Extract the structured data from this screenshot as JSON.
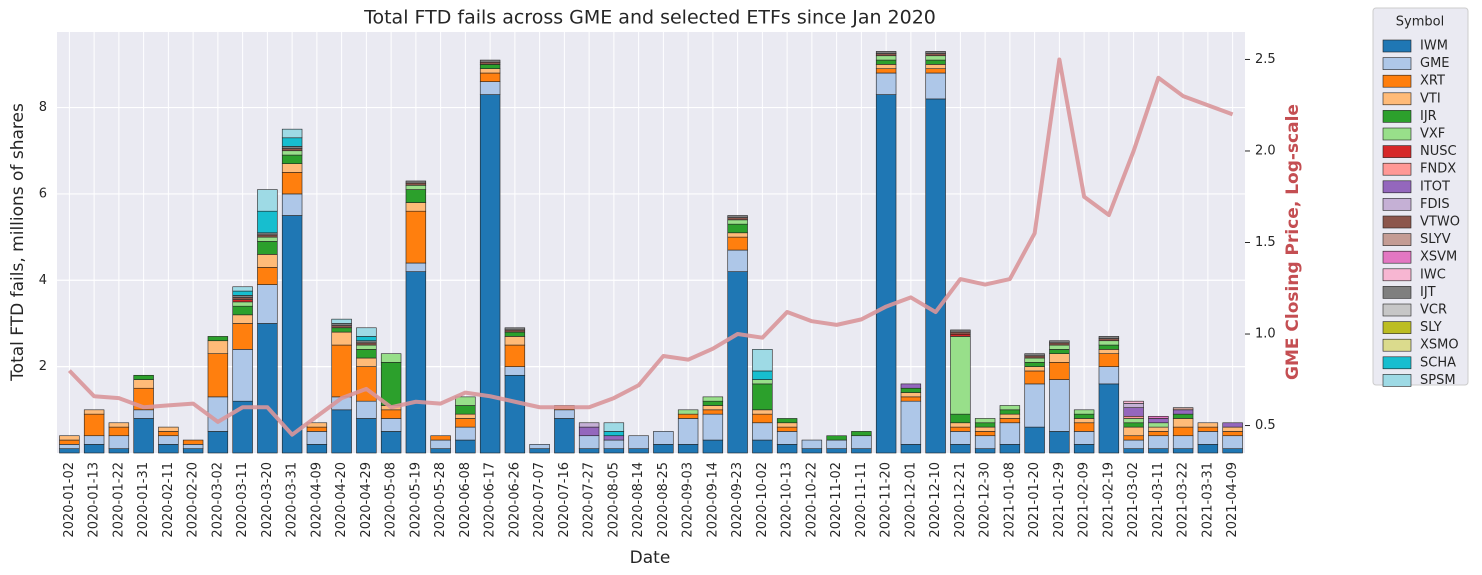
{
  "chart_data": {
    "type": "bar",
    "stacked": true,
    "title": "Total FTD fails across GME and selected ETFs since Jan 2020",
    "xlabel": "Date",
    "ylabel": "Total FTD fails, millions of shares",
    "y2label": "GME Closing Price, Log-scale",
    "legend_title": "Symbol",
    "legend": "outside-right",
    "grid": true,
    "ylim": [
      0,
      9.75
    ],
    "yticks": [
      2,
      4,
      6,
      8
    ],
    "y2lim": [
      0.35,
      2.65
    ],
    "y2ticks": [
      0.5,
      {
        "value": 1,
        "label": "1.0"
      },
      1.5,
      {
        "value": 2,
        "label": "2.0"
      },
      2.5
    ],
    "categories": [
      "2020-01-02",
      "2020-01-13",
      "2020-01-22",
      "2020-01-31",
      "2020-02-11",
      "2020-02-20",
      "2020-03-02",
      "2020-03-11",
      "2020-03-20",
      "2020-03-31",
      "2020-04-09",
      "2020-04-20",
      "2020-04-29",
      "2020-05-08",
      "2020-05-19",
      "2020-05-28",
      "2020-06-08",
      "2020-06-17",
      "2020-06-26",
      "2020-07-07",
      "2020-07-16",
      "2020-07-27",
      "2020-08-05",
      "2020-08-14",
      "2020-08-25",
      "2020-09-03",
      "2020-09-14",
      "2020-09-23",
      "2020-10-02",
      "2020-10-13",
      "2020-10-22",
      "2020-11-02",
      "2020-11-11",
      "2020-11-20",
      "2020-12-01",
      "2020-12-10",
      "2020-12-21",
      "2020-12-30",
      "2021-01-08",
      "2021-01-20",
      "2021-01-29",
      "2021-02-09",
      "2021-02-19",
      "2021-03-02",
      "2021-03-11",
      "2021-03-22",
      "2021-03-31",
      "2021-04-09"
    ],
    "series": [
      {
        "name": "IWM",
        "color": "#1f77b4",
        "values": [
          0.1,
          0.2,
          0.1,
          0.8,
          0.2,
          0.1,
          0.5,
          1.2,
          3.0,
          5.5,
          0.2,
          1.0,
          0.8,
          0.5,
          4.2,
          0.1,
          0.3,
          8.3,
          1.8,
          0.1,
          0.8,
          0.1,
          0.1,
          0.1,
          0.2,
          0.2,
          0.3,
          4.2,
          0.3,
          0.2,
          0.1,
          0.1,
          0.1,
          8.3,
          0.2,
          8.2,
          0.2,
          0.1,
          0.2,
          0.6,
          0.5,
          0.2,
          1.6,
          0.1,
          0.1,
          0.1,
          0.2,
          0.1
        ]
      },
      {
        "name": "GME",
        "color": "#aec7e8",
        "values": [
          0.1,
          0.2,
          0.3,
          0.2,
          0.2,
          0.1,
          0.8,
          1.2,
          0.9,
          0.5,
          0.3,
          0.3,
          0.4,
          0.3,
          0.2,
          0.2,
          0.3,
          0.3,
          0.2,
          0.1,
          0.2,
          0.3,
          0.2,
          0.3,
          0.3,
          0.6,
          0.6,
          0.5,
          0.4,
          0.3,
          0.2,
          0.2,
          0.3,
          0.5,
          1.0,
          0.6,
          0.3,
          0.3,
          0.5,
          1.0,
          1.2,
          0.3,
          0.4,
          0.2,
          0.3,
          0.3,
          0.3,
          0.3
        ]
      },
      {
        "name": "XRT",
        "color": "#ff7f0e",
        "values": [
          0.1,
          0.5,
          0.2,
          0.5,
          0.1,
          0.1,
          1.0,
          0.6,
          0.4,
          0.5,
          0.1,
          1.2,
          0.8,
          0.2,
          1.2,
          0.1,
          0.2,
          0.2,
          0.5,
          0,
          0.1,
          0,
          0,
          0,
          0,
          0.1,
          0.1,
          0.3,
          0.2,
          0.1,
          0,
          0,
          0,
          0.1,
          0.1,
          0.1,
          0.1,
          0.1,
          0.1,
          0.3,
          0.4,
          0.2,
          0.3,
          0.1,
          0.1,
          0.2,
          0.1,
          0.1
        ]
      },
      {
        "name": "VTI",
        "color": "#ffbb78",
        "values": [
          0.1,
          0.1,
          0.1,
          0.2,
          0.1,
          0,
          0.3,
          0.2,
          0.3,
          0.2,
          0.1,
          0.3,
          0.2,
          0.1,
          0.2,
          0,
          0.1,
          0.1,
          0.2,
          0,
          0,
          0,
          0,
          0,
          0,
          0,
          0.1,
          0.1,
          0.1,
          0.1,
          0,
          0,
          0,
          0.1,
          0.1,
          0.1,
          0.1,
          0.1,
          0.1,
          0.1,
          0.2,
          0.1,
          0.1,
          0.2,
          0.1,
          0.2,
          0.1,
          0.1
        ]
      },
      {
        "name": "IJR",
        "color": "#2ca02c",
        "values": [
          0,
          0,
          0,
          0.1,
          0,
          0,
          0.1,
          0.2,
          0.3,
          0.2,
          0,
          0.1,
          0.2,
          1.0,
          0.3,
          0,
          0.2,
          0.1,
          0.1,
          0,
          0,
          0,
          0,
          0,
          0,
          0,
          0.1,
          0.2,
          0.6,
          0.1,
          0,
          0.1,
          0.1,
          0.1,
          0.1,
          0.1,
          0.2,
          0.1,
          0.1,
          0.1,
          0.1,
          0.1,
          0.1,
          0.1,
          0,
          0.1,
          0,
          0
        ]
      },
      {
        "name": "VXF",
        "color": "#98df8a",
        "values": [
          0,
          0,
          0,
          0,
          0,
          0,
          0,
          0.1,
          0.1,
          0.1,
          0,
          0,
          0.1,
          0.2,
          0.1,
          0,
          0.2,
          0,
          0,
          0,
          0,
          0,
          0,
          0,
          0,
          0.1,
          0.1,
          0.1,
          0.1,
          0,
          0,
          0,
          0,
          0.1,
          0,
          0.1,
          1.8,
          0.1,
          0.1,
          0.1,
          0.1,
          0.1,
          0.1,
          0.1,
          0.1,
          0,
          0,
          0
        ]
      },
      {
        "name": "NUSC",
        "color": "#d62728",
        "values": [
          0,
          0,
          0,
          0,
          0,
          0,
          0,
          0.05,
          0,
          0,
          0,
          0,
          0,
          0,
          0,
          0,
          0,
          0,
          0,
          0,
          0,
          0,
          0,
          0,
          0,
          0,
          0,
          0,
          0,
          0,
          0,
          0,
          0,
          0,
          0,
          0,
          0.05,
          0,
          0,
          0,
          0,
          0,
          0,
          0,
          0,
          0,
          0,
          0
        ]
      },
      {
        "name": "FNDX",
        "color": "#ff9896",
        "values": [
          0,
          0,
          0,
          0,
          0,
          0,
          0,
          0,
          0,
          0,
          0,
          0,
          0,
          0,
          0,
          0,
          0,
          0,
          0,
          0,
          0,
          0,
          0,
          0,
          0,
          0,
          0,
          0,
          0,
          0,
          0,
          0,
          0,
          0,
          0,
          0,
          0,
          0,
          0,
          0,
          0,
          0,
          0,
          0.05,
          0,
          0,
          0,
          0
        ]
      },
      {
        "name": "ITOT",
        "color": "#9467bd",
        "values": [
          0,
          0,
          0,
          0,
          0,
          0,
          0,
          0,
          0,
          0,
          0,
          0,
          0,
          0,
          0,
          0,
          0,
          0,
          0,
          0,
          0,
          0.2,
          0.1,
          0,
          0,
          0,
          0,
          0,
          0,
          0,
          0,
          0,
          0,
          0,
          0.1,
          0,
          0,
          0,
          0,
          0,
          0,
          0,
          0,
          0.2,
          0.1,
          0.1,
          0,
          0.1
        ]
      },
      {
        "name": "FDIS",
        "color": "#c5b0d5",
        "values": [
          0,
          0,
          0,
          0,
          0,
          0,
          0,
          0,
          0,
          0,
          0,
          0,
          0,
          0,
          0,
          0,
          0,
          0,
          0,
          0,
          0,
          0.1,
          0,
          0,
          0,
          0,
          0,
          0,
          0,
          0,
          0,
          0,
          0,
          0,
          0,
          0,
          0,
          0,
          0,
          0,
          0,
          0,
          0,
          0.1,
          0,
          0,
          0,
          0
        ]
      },
      {
        "name": "VTWO",
        "color": "#8c564b",
        "values": [
          0,
          0,
          0,
          0,
          0,
          0,
          0,
          0.05,
          0.05,
          0.05,
          0,
          0.05,
          0.05,
          0,
          0.05,
          0,
          0,
          0.05,
          0.05,
          0,
          0,
          0,
          0,
          0,
          0,
          0,
          0,
          0.05,
          0,
          0,
          0,
          0,
          0,
          0.05,
          0,
          0.05,
          0.05,
          0,
          0,
          0.05,
          0.05,
          0,
          0.05,
          0,
          0,
          0,
          0,
          0
        ]
      },
      {
        "name": "SLYV",
        "color": "#c49c94",
        "values": [
          0,
          0,
          0,
          0,
          0,
          0,
          0,
          0,
          0,
          0,
          0,
          0,
          0,
          0,
          0,
          0,
          0,
          0,
          0,
          0,
          0,
          0,
          0,
          0,
          0,
          0,
          0,
          0,
          0,
          0,
          0,
          0,
          0,
          0,
          0,
          0,
          0,
          0,
          0,
          0,
          0,
          0,
          0,
          0,
          0,
          0.05,
          0,
          0
        ]
      },
      {
        "name": "XSVM",
        "color": "#e377c2",
        "values": [
          0,
          0,
          0,
          0,
          0,
          0,
          0,
          0,
          0,
          0,
          0,
          0,
          0,
          0,
          0,
          0,
          0,
          0,
          0,
          0,
          0,
          0,
          0,
          0,
          0,
          0,
          0,
          0,
          0,
          0,
          0,
          0,
          0,
          0,
          0,
          0,
          0,
          0,
          0,
          0,
          0,
          0,
          0,
          0,
          0.05,
          0,
          0,
          0
        ]
      },
      {
        "name": "IWC",
        "color": "#f7b6d2",
        "values": [
          0,
          0,
          0,
          0,
          0,
          0,
          0,
          0,
          0,
          0,
          0,
          0,
          0,
          0,
          0,
          0,
          0,
          0,
          0,
          0,
          0,
          0,
          0,
          0,
          0,
          0,
          0,
          0,
          0,
          0,
          0,
          0,
          0,
          0,
          0,
          0,
          0,
          0,
          0,
          0,
          0,
          0,
          0,
          0.05,
          0,
          0,
          0,
          0
        ]
      },
      {
        "name": "IJT",
        "color": "#7f7f7f",
        "values": [
          0,
          0,
          0,
          0,
          0,
          0,
          0,
          0.05,
          0.05,
          0.05,
          0,
          0.05,
          0.05,
          0,
          0.05,
          0,
          0,
          0.05,
          0.05,
          0,
          0,
          0,
          0,
          0,
          0,
          0,
          0,
          0.05,
          0,
          0,
          0,
          0,
          0,
          0.05,
          0,
          0.05,
          0.05,
          0,
          0,
          0.05,
          0.05,
          0,
          0.05,
          0,
          0,
          0,
          0,
          0
        ]
      },
      {
        "name": "VCR",
        "color": "#c7c7c7",
        "values": [
          0,
          0,
          0,
          0,
          0,
          0,
          0,
          0,
          0,
          0,
          0,
          0,
          0,
          0,
          0,
          0,
          0,
          0,
          0,
          0,
          0,
          0,
          0,
          0,
          0,
          0,
          0,
          0,
          0,
          0,
          0,
          0,
          0,
          0,
          0,
          0,
          0,
          0,
          0,
          0,
          0,
          0,
          0,
          0,
          0,
          0,
          0,
          0
        ]
      },
      {
        "name": "SLY",
        "color": "#bcbd22",
        "values": [
          0,
          0,
          0,
          0,
          0,
          0,
          0,
          0,
          0,
          0,
          0,
          0,
          0,
          0,
          0,
          0,
          0,
          0,
          0,
          0,
          0,
          0,
          0,
          0,
          0,
          0,
          0,
          0,
          0,
          0,
          0,
          0,
          0,
          0,
          0,
          0,
          0,
          0,
          0,
          0,
          0,
          0,
          0,
          0,
          0,
          0,
          0,
          0
        ]
      },
      {
        "name": "XSMO",
        "color": "#dbdb8d",
        "values": [
          0,
          0,
          0,
          0,
          0,
          0,
          0,
          0,
          0,
          0,
          0,
          0,
          0,
          0,
          0,
          0,
          0,
          0,
          0,
          0,
          0,
          0,
          0,
          0,
          0,
          0,
          0,
          0,
          0,
          0,
          0,
          0,
          0,
          0,
          0,
          0,
          0,
          0,
          0,
          0,
          0,
          0,
          0,
          0,
          0,
          0,
          0,
          0
        ]
      },
      {
        "name": "SCHA",
        "color": "#17becf",
        "values": [
          0,
          0,
          0,
          0,
          0,
          0,
          0,
          0.1,
          0.5,
          0.2,
          0,
          0,
          0.1,
          0,
          0,
          0,
          0,
          0,
          0,
          0,
          0,
          0,
          0.1,
          0,
          0,
          0,
          0,
          0,
          0.2,
          0,
          0,
          0,
          0,
          0,
          0,
          0,
          0,
          0,
          0,
          0,
          0,
          0,
          0,
          0,
          0,
          0,
          0,
          0
        ]
      },
      {
        "name": "SPSM",
        "color": "#9edae5",
        "values": [
          0,
          0,
          0,
          0,
          0,
          0,
          0,
          0.1,
          0.5,
          0.2,
          0,
          0.1,
          0.2,
          0,
          0,
          0,
          0,
          0,
          0,
          0,
          0,
          0,
          0.2,
          0,
          0,
          0,
          0,
          0,
          0.5,
          0,
          0,
          0,
          0,
          0,
          0,
          0,
          0,
          0,
          0,
          0,
          0,
          0,
          0,
          0,
          0,
          0,
          0,
          0
        ]
      },
      {
        "type": "line",
        "axis": "y2",
        "color": "#d9969a",
        "values": [
          0.8,
          0.66,
          0.65,
          0.6,
          0.61,
          0.62,
          0.52,
          0.6,
          0.6,
          0.45,
          0.55,
          0.65,
          0.7,
          0.6,
          0.63,
          0.62,
          0.68,
          0.66,
          0.63,
          0.6,
          0.6,
          0.6,
          0.65,
          0.72,
          0.88,
          0.86,
          0.92,
          1.0,
          0.98,
          1.12,
          1.07,
          1.05,
          1.08,
          1.15,
          1.2,
          1.12,
          1.3,
          1.27,
          1.3,
          1.55,
          2.5,
          1.75,
          1.65,
          2.0,
          2.4,
          2.3,
          2.25,
          2.2
        ]
      }
    ]
  }
}
